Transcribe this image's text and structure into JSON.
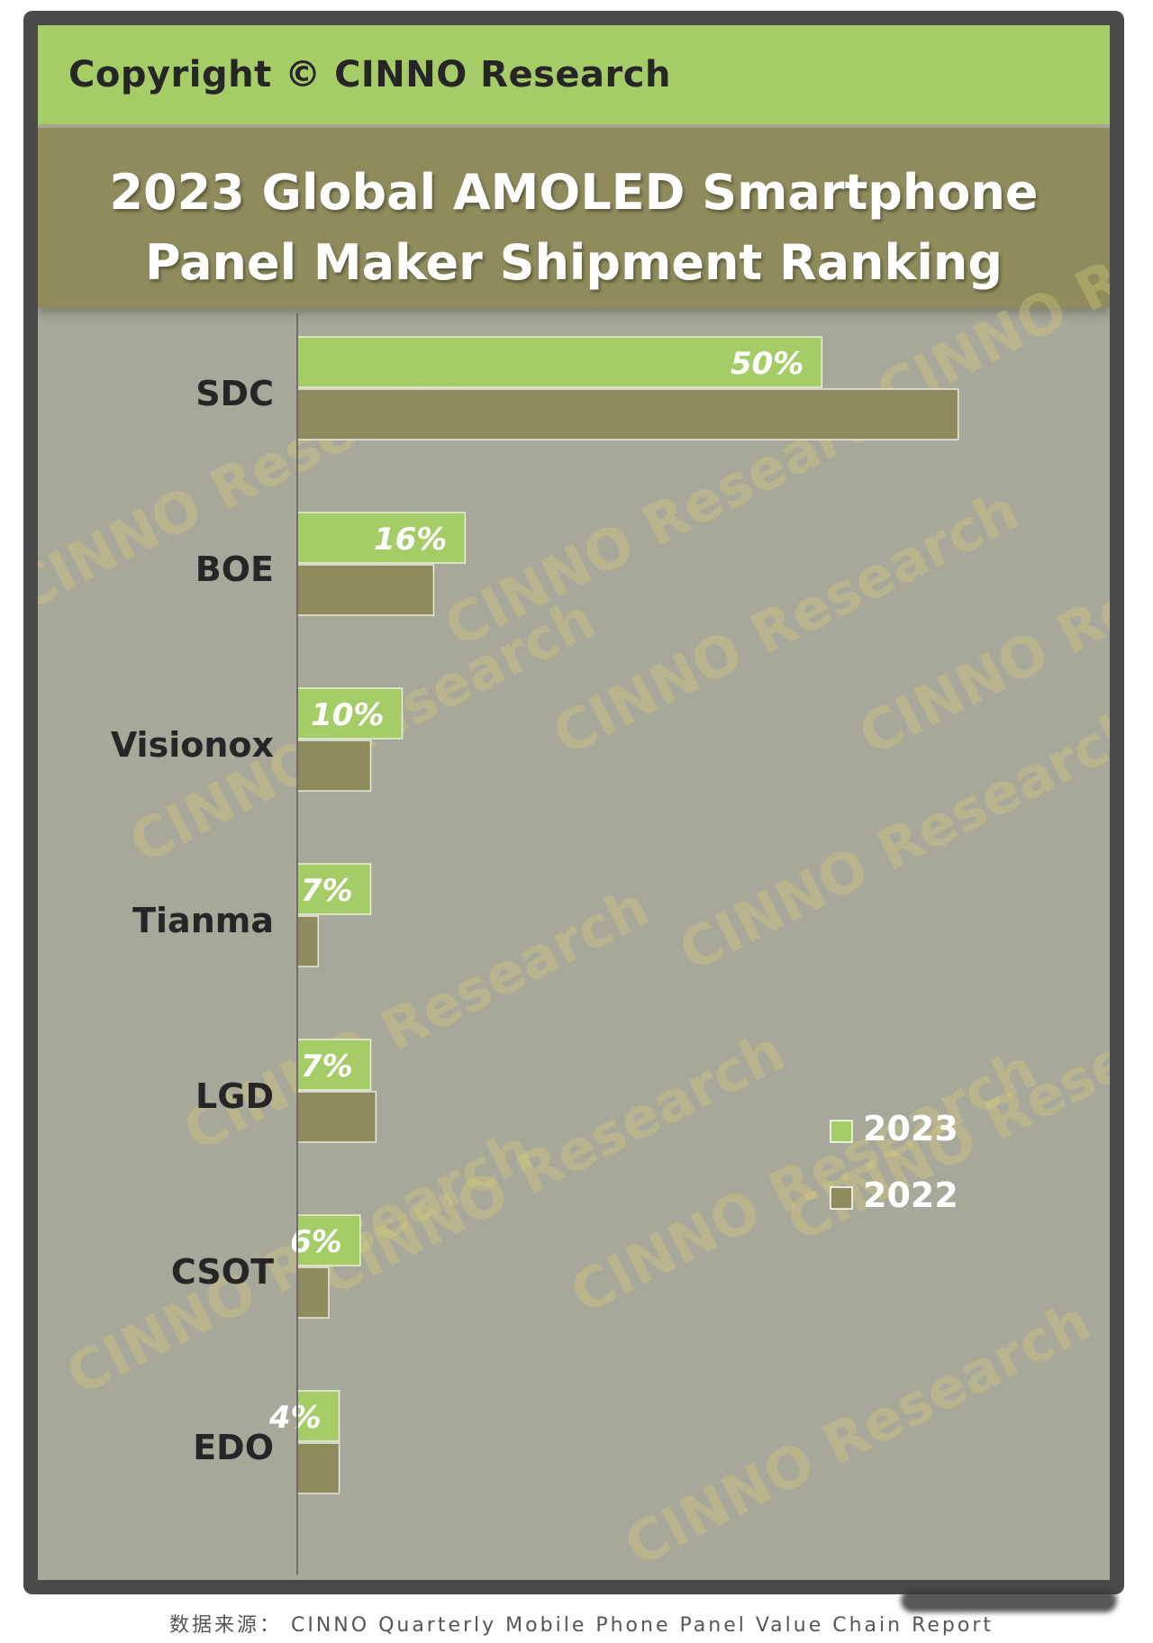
{
  "header": {
    "copyright": "Copyright © CINNO Research",
    "title_lines": [
      "2023 Global AMOLED Smartphone",
      "Panel Maker Shipment Ranking"
    ]
  },
  "watermark_text": "CINNO Research",
  "footer": {
    "source": "数据来源： CINNO Quarterly Mobile Phone Panel Value Chain Report"
  },
  "colors": {
    "series_2023": "#a6cc68",
    "series_2022": "#8e8c5c",
    "plot_background": "#a8a89a",
    "title_background": "#8e8c5c",
    "header_background": "#a6cc68"
  },
  "chart_data": {
    "type": "bar",
    "orientation": "horizontal",
    "categories": [
      "SDC",
      "BOE",
      "Visionox",
      "Tianma",
      "LGD",
      "CSOT",
      "EDO"
    ],
    "series": [
      {
        "name": "2023",
        "values": [
          50,
          16,
          10,
          7,
          7,
          6,
          4
        ],
        "data_labels": [
          "50%",
          "16%",
          "10%",
          "7%",
          "7%",
          "6%",
          "4%"
        ]
      },
      {
        "name": "2022",
        "values": [
          63,
          13,
          7,
          2,
          7.5,
          3,
          4
        ]
      }
    ],
    "xlim": [
      0,
      68
    ],
    "grid": false,
    "legend_position": "bottom-right"
  }
}
